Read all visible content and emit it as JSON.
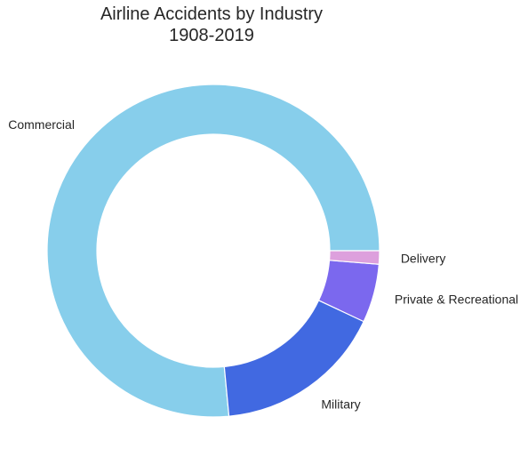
{
  "chart_data": {
    "type": "pie",
    "donut": true,
    "title_lines": [
      "Airline Accidents by Industry",
      "1908-2019"
    ],
    "labels": [
      "Commercial",
      "Military",
      "Private & Recreational",
      "Delivery"
    ],
    "values": [
      76.5,
      16.5,
      5.7,
      1.3
    ],
    "colors": [
      "#87ceeb",
      "#4169e1",
      "#7b68ee",
      "#dda0dd"
    ],
    "start_angle_deg": 0,
    "direction": "counterclockwise",
    "legend": "none"
  }
}
